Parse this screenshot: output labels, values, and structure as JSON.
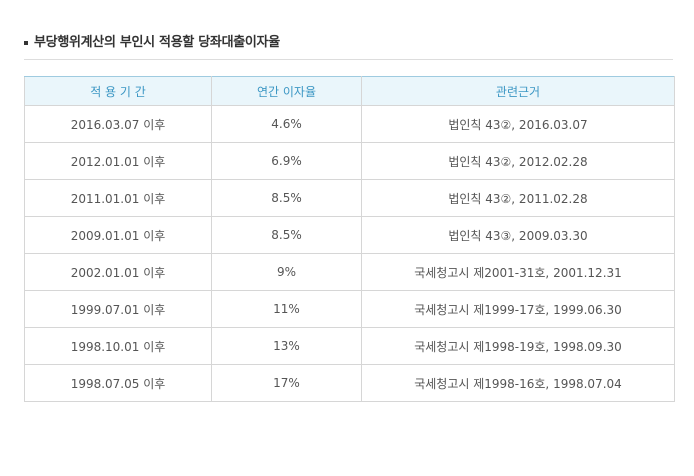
{
  "heading": {
    "title": "부당행위계산의 부인시 적용할 당좌대출이자율"
  },
  "table": {
    "headers": [
      "적 용 기 간",
      "연간 이자율",
      "관련근거"
    ],
    "rows": [
      [
        "2016.03.07 이후",
        "4.6%",
        "법인칙 43②, 2016.03.07"
      ],
      [
        "2012.01.01 이후",
        "6.9%",
        "법인칙 43②, 2012.02.28"
      ],
      [
        "2011.01.01 이후",
        "8.5%",
        "법인칙 43②, 2011.02.28"
      ],
      [
        "2009.01.01 이후",
        "8.5%",
        "법인칙 43③, 2009.03.30"
      ],
      [
        "2002.01.01 이후",
        "9%",
        "국세청고시 제2001-31호, 2001.12.31"
      ],
      [
        "1999.07.01 이후",
        "11%",
        "국세청고시 제1999-17호, 1999.06.30"
      ],
      [
        "1998.10.01 이후",
        "13%",
        "국세청고시 제1998-19호, 1998.09.30"
      ],
      [
        "1998.07.05 이후",
        "17%",
        "국세청고시 제1998-16호, 1998.07.04"
      ]
    ]
  }
}
